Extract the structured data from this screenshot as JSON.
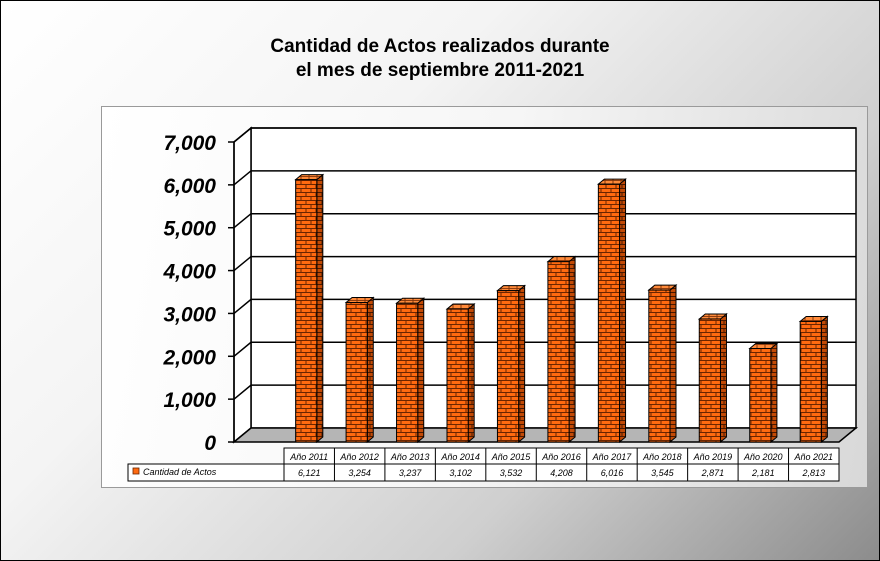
{
  "chart_data": {
    "type": "bar",
    "title_lines": [
      "Cantidad de Actos realizados durante",
      "el mes de septiembre 2011-2021"
    ],
    "categories": [
      "Año 2011",
      "Año 2012",
      "Año 2013",
      "Año 2014",
      "Año 2015",
      "Año 2016",
      "Año 2017",
      "Año 2018",
      "Año 2019",
      "Año 2020",
      "Año 2021"
    ],
    "series": [
      {
        "name": "Cantidad de Actos",
        "values": [
          6121,
          3254,
          3237,
          3102,
          3532,
          4208,
          6016,
          3545,
          2871,
          2181,
          2813
        ],
        "value_labels": [
          "6,121",
          "3,254",
          "3,237",
          "3,102",
          "3,532",
          "4,208",
          "6,016",
          "3,545",
          "2,871",
          "2,181",
          "2,813"
        ]
      }
    ],
    "ylim": [
      0,
      7000
    ],
    "yticks": [
      0,
      1000,
      2000,
      3000,
      4000,
      5000,
      6000,
      7000
    ],
    "ytick_labels": [
      "0",
      "1,000",
      "2,000",
      "3,000",
      "4,000",
      "5,000",
      "6,000",
      "7,000"
    ],
    "xlabel": "",
    "ylabel": "",
    "grid": true,
    "data_table": true,
    "style": "3d-brick",
    "colors": {
      "bar": "#ff6a10",
      "mortar": "#6b2500",
      "grid": "#000000",
      "floor": "#b5b5b5"
    }
  }
}
